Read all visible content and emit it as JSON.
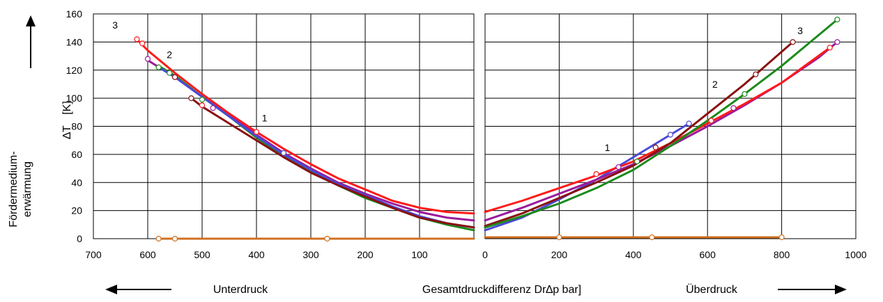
{
  "chart_data": [
    {
      "type": "line",
      "panel": "left",
      "x_axis_reversed": true,
      "xlim": [
        0,
        700
      ],
      "ylim": [
        0,
        160
      ],
      "x_ticks": [
        "700",
        "600",
        "500",
        "400",
        "300",
        "200",
        "100"
      ],
      "y_ticks": [
        "0",
        "20",
        "40",
        "60",
        "80",
        "100",
        "120",
        "140",
        "160"
      ],
      "grid": true,
      "curve_labels": [
        {
          "text": "3",
          "x": 660,
          "y": 152
        },
        {
          "text": "2",
          "x": 560,
          "y": 131
        },
        {
          "text": "1",
          "x": 385,
          "y": 86
        }
      ],
      "series": [
        {
          "color": "#9b1a9b",
          "x": [
            600,
            550,
            500,
            450,
            400,
            350,
            300,
            250,
            200,
            150,
            100,
            50,
            0
          ],
          "y": [
            127,
            115,
            101,
            88,
            74,
            61,
            50,
            40,
            32,
            25,
            19,
            15,
            13
          ]
        },
        {
          "color": "#1c8a1c",
          "x": [
            580,
            550,
            500,
            450,
            400,
            350,
            300,
            250,
            200,
            150,
            100,
            50,
            0
          ],
          "y": [
            123,
            116,
            101,
            87,
            72,
            59,
            48,
            38,
            29,
            22,
            15,
            10,
            6
          ]
        },
        {
          "color": "#4a4ad8",
          "x": [
            580,
            550,
            500,
            450,
            400,
            350,
            300,
            250,
            200,
            150,
            100,
            50,
            0
          ],
          "y": [
            122,
            115,
            101,
            87,
            73,
            60,
            49,
            39,
            31,
            23,
            16,
            11,
            8
          ]
        },
        {
          "color": "#8b1010",
          "x": [
            520,
            500,
            450,
            400,
            350,
            300,
            250,
            200,
            150,
            100,
            50,
            0
          ],
          "y": [
            100,
            94,
            82,
            70,
            58,
            47,
            38,
            30,
            22,
            15,
            11,
            8
          ]
        },
        {
          "color": "#ff1a1a",
          "x": [
            620,
            600,
            550,
            500,
            450,
            400,
            350,
            300,
            250,
            200,
            150,
            100,
            50,
            0
          ],
          "y": [
            142,
            134,
            118,
            103,
            89,
            76,
            64,
            53,
            43,
            35,
            27,
            22,
            19,
            18
          ]
        },
        {
          "color": "#d07020",
          "x": [
            580,
            550,
            270,
            0
          ],
          "y": [
            0,
            0,
            0,
            0
          ]
        }
      ],
      "markers": [
        {
          "color": "#ff1a1a",
          "x": [
            620,
            610,
            500,
            400
          ],
          "y": [
            142,
            139,
            95,
            76
          ]
        },
        {
          "color": "#9b1a9b",
          "x": [
            600,
            480
          ],
          "y": [
            128,
            93
          ]
        },
        {
          "color": "#1c8a1c",
          "x": [
            580,
            560,
            500
          ],
          "y": [
            122,
            118,
            99
          ]
        },
        {
          "color": "#8b1010",
          "x": [
            550,
            520
          ],
          "y": [
            115,
            100
          ]
        },
        {
          "color": "#4a4ad8",
          "x": [
            350
          ],
          "y": [
            61
          ]
        },
        {
          "color": "#d07020",
          "x": [
            580,
            550,
            270
          ],
          "y": [
            0,
            0,
            0
          ]
        }
      ]
    },
    {
      "type": "line",
      "panel": "right",
      "xlim": [
        0,
        1000
      ],
      "ylim": [
        0,
        160
      ],
      "x_ticks": [
        "0",
        "200",
        "400",
        "600",
        "800",
        "1000"
      ],
      "grid": true,
      "curve_labels": [
        {
          "text": "1",
          "x": 330,
          "y": 65
        },
        {
          "text": "2",
          "x": 620,
          "y": 110
        },
        {
          "text": "3",
          "x": 850,
          "y": 148
        }
      ],
      "series": [
        {
          "color": "#4a4ad8",
          "x": [
            0,
            100,
            200,
            300,
            400,
            500,
            550
          ],
          "y": [
            6,
            15,
            28,
            42,
            58,
            74,
            82
          ]
        },
        {
          "color": "#9b1a9b",
          "x": [
            0,
            100,
            200,
            300,
            400,
            500,
            600,
            700,
            800,
            900,
            950
          ],
          "y": [
            13,
            22,
            32,
            42,
            53,
            66,
            80,
            95,
            111,
            129,
            140
          ]
        },
        {
          "color": "#ff1a1a",
          "x": [
            0,
            100,
            200,
            300,
            400,
            500,
            600,
            700,
            800,
            930
          ],
          "y": [
            19,
            27,
            36,
            45,
            55,
            68,
            82,
            96,
            111,
            136
          ]
        },
        {
          "color": "#8b1010",
          "x": [
            0,
            100,
            200,
            300,
            400,
            500,
            600,
            700,
            830
          ],
          "y": [
            9,
            18,
            29,
            40,
            52,
            68,
            89,
            110,
            140
          ]
        },
        {
          "color": "#1c8a1c",
          "x": [
            0,
            100,
            200,
            300,
            400,
            500,
            600,
            700,
            800,
            950
          ],
          "y": [
            8,
            16,
            25,
            36,
            49,
            66,
            84,
            103,
            123,
            156
          ]
        },
        {
          "color": "#d07020",
          "x": [
            0,
            200,
            450,
            800
          ],
          "y": [
            1,
            1,
            1,
            1
          ]
        }
      ],
      "markers": [
        {
          "color": "#4a4ad8",
          "x": [
            500,
            550
          ],
          "y": [
            74,
            82
          ]
        },
        {
          "color": "#9b1a9b",
          "x": [
            360,
            670,
            950
          ],
          "y": [
            51,
            93,
            140
          ]
        },
        {
          "color": "#ff1a1a",
          "x": [
            300,
            610,
            930
          ],
          "y": [
            46,
            84,
            136
          ]
        },
        {
          "color": "#8b1010",
          "x": [
            460,
            730,
            830
          ],
          "y": [
            65,
            117,
            140
          ]
        },
        {
          "color": "#1c8a1c",
          "x": [
            410,
            700,
            950
          ],
          "y": [
            55,
            103,
            156
          ]
        },
        {
          "color": "#d07020",
          "x": [
            200,
            450,
            800
          ],
          "y": [
            1,
            1,
            1
          ]
        }
      ]
    }
  ],
  "labels": {
    "y_main": "Fördermedium-",
    "y_main2": "erwärmung",
    "y_symbol": "∆T",
    "y_unit": "[K]",
    "x_center": "Gesamtdruckdifferenz Dr∆p bar]",
    "x_left": "Unterdruck",
    "x_right": "Überdruck"
  }
}
